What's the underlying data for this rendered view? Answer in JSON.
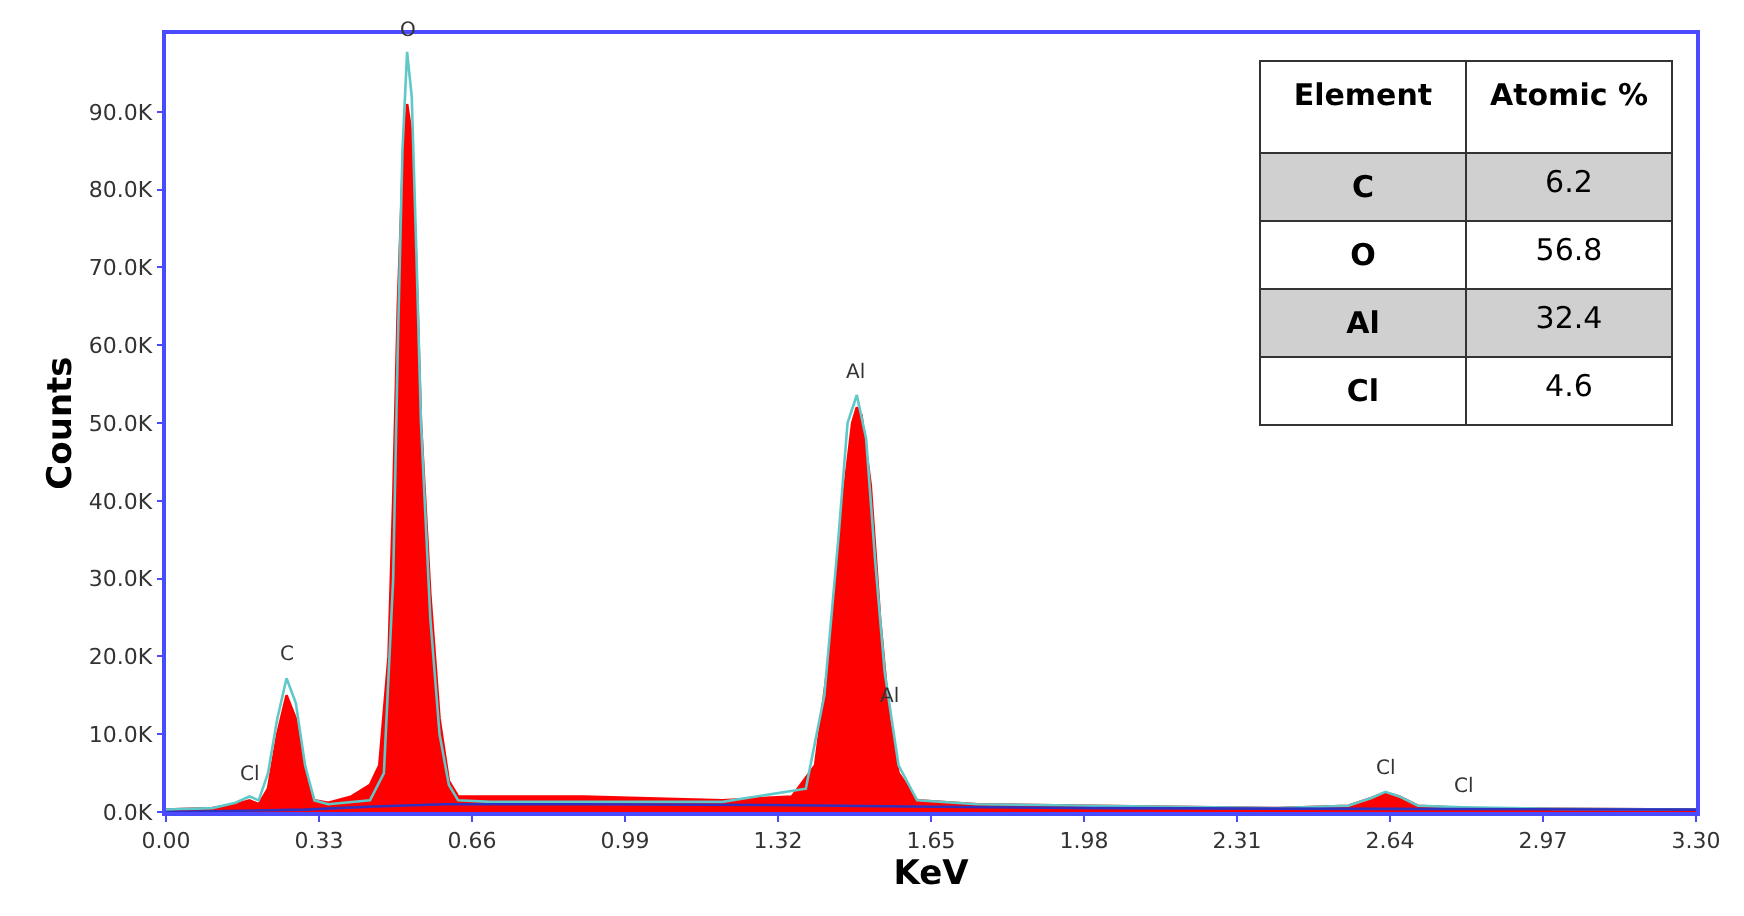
{
  "chart_data": [
    {
      "type": "area",
      "xlabel": "KeV",
      "ylabel": "Counts",
      "xlim": [
        0,
        3.3
      ],
      "ylim": [
        0,
        100000
      ],
      "xticks": [
        {
          "value": 0,
          "label": "0.00"
        },
        0.33,
        0.66,
        0.99,
        1.32,
        1.65,
        1.98,
        2.31,
        2.64,
        2.97,
        {
          "value": 3.3,
          "label": "3.30"
        }
      ],
      "yticks": [
        {
          "value": 0,
          "label": "0.0K"
        },
        {
          "value": 10000,
          "label": "10.0K"
        },
        {
          "value": 20000,
          "label": "20.0K"
        },
        {
          "value": 30000,
          "label": "30.0K"
        },
        {
          "value": 40000,
          "label": "40.0K"
        },
        {
          "value": 50000,
          "label": "50.0K"
        },
        {
          "value": 60000,
          "label": "60.0K"
        },
        {
          "value": 70000,
          "label": "70.0K"
        },
        {
          "value": 80000,
          "label": "80.0K"
        },
        {
          "value": 90000,
          "label": "90.0K"
        }
      ],
      "marker": "none",
      "line_style": "solid",
      "series": [
        {
          "type": "area",
          "color": "#ff0000",
          "x": [
            0,
            0.1,
            0.15,
            0.18,
            0.2,
            0.22,
            0.24,
            0.26,
            0.28,
            0.3,
            0.32,
            0.35,
            0.4,
            0.44,
            0.46,
            0.48,
            0.49,
            0.5,
            0.51,
            0.52,
            0.53,
            0.54,
            0.55,
            0.57,
            0.59,
            0.61,
            0.63,
            0.7,
            0.9,
            1.2,
            1.35,
            1.4,
            1.43,
            1.46,
            1.48,
            1.49,
            1.5,
            1.52,
            1.54,
            1.56,
            1.58,
            1.62,
            1.75,
            2.0,
            2.4,
            2.55,
            2.6,
            2.63,
            2.66,
            2.7,
            2.8,
            3.0,
            3.3
          ],
          "values": [
            300,
            500,
            1000,
            1500,
            1000,
            3000,
            10000,
            15000,
            12000,
            5000,
            1500,
            1200,
            2000,
            3500,
            6000,
            20000,
            40000,
            65000,
            82000,
            91000,
            87000,
            70000,
            50000,
            28000,
            12000,
            4000,
            2000,
            2000,
            2000,
            1500,
            2000,
            6000,
            20000,
            40000,
            50000,
            52000,
            51000,
            42000,
            25000,
            12000,
            5000,
            1500,
            1000,
            800,
            500,
            800,
            1800,
            2500,
            2000,
            800,
            500,
            400,
            300
          ]
        },
        {
          "type": "line",
          "color": "#5fc8c8",
          "x": [
            0,
            0.1,
            0.15,
            0.18,
            0.2,
            0.22,
            0.24,
            0.26,
            0.28,
            0.3,
            0.32,
            0.35,
            0.44,
            0.47,
            0.49,
            0.5,
            0.51,
            0.52,
            0.53,
            0.54,
            0.55,
            0.57,
            0.59,
            0.61,
            0.63,
            0.7,
            1.2,
            1.38,
            1.42,
            1.45,
            1.47,
            1.49,
            1.51,
            1.53,
            1.55,
            1.58,
            1.62,
            1.75,
            2.4,
            2.55,
            2.6,
            2.63,
            2.66,
            2.7,
            2.8,
            3.0,
            3.3
          ],
          "values": [
            300,
            500,
            1200,
            2000,
            1500,
            5000,
            12000,
            17200,
            14000,
            6000,
            1500,
            1000,
            1500,
            5000,
            30000,
            60000,
            85000,
            97700,
            92000,
            72000,
            50000,
            25000,
            10000,
            3500,
            1500,
            1300,
            1300,
            3000,
            15000,
            35000,
            50000,
            53600,
            48000,
            32000,
            18000,
            6000,
            1500,
            1000,
            500,
            800,
            1800,
            2600,
            2000,
            800,
            600,
            400,
            300
          ]
        },
        {
          "type": "line",
          "color": "#3030c0",
          "x": [
            0,
            0.3,
            0.45,
            0.6,
            0.9,
            1.3,
            1.6,
            2.0,
            2.6,
            3.3
          ],
          "values": [
            0,
            300,
            700,
            1000,
            1000,
            900,
            700,
            500,
            400,
            300
          ]
        }
      ],
      "annotations": [
        {
          "text": "Cl",
          "x": 0.18,
          "y": 2000
        },
        {
          "text": "C",
          "x": 0.26,
          "y": 17200
        },
        {
          "text": "O",
          "x": 0.52,
          "y": 97700
        },
        {
          "text": "Al",
          "x": 1.49,
          "y": 53600
        },
        {
          "text": "Al",
          "x": 1.56,
          "y": 12000
        },
        {
          "text": "Cl",
          "x": 2.63,
          "y": 2600
        },
        {
          "text": "Cl",
          "x": 2.8,
          "y": 600
        }
      ]
    },
    {
      "type": "other",
      "xlabel": "Element",
      "ylabel": "Atomic %",
      "categories": [
        "C",
        "O",
        "Al",
        "Cl"
      ],
      "values": [
        6.2,
        56.8,
        32.4,
        4.6
      ],
      "data_labels": true
    }
  ]
}
